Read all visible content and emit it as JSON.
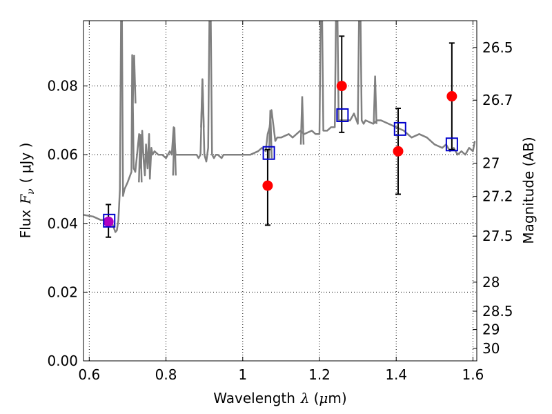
{
  "chart_data": {
    "type": "scatter",
    "title": "",
    "xlabel": "Wavelength",
    "xlabel_symbol": "λ",
    "xlabel_unit_open": "(",
    "xlabel_unit_mu": "μ",
    "xlabel_unit_rest": "m)",
    "ylabel": "Flux",
    "ylabel_symbol": "F",
    "ylabel_subscript": "ν",
    "ylabel_unit": "( μJy )",
    "y2label": "Magnitude (AB)",
    "xlim": [
      0.585,
      1.61
    ],
    "ylim": [
      0.0,
      0.099
    ],
    "xticks": [
      0.6,
      0.8,
      1.0,
      1.2,
      1.4,
      1.6
    ],
    "xtick_labels": [
      "0.6",
      "0.8",
      "1",
      "1.2",
      "1.4",
      "1.6"
    ],
    "yticks": [
      0.0,
      0.02,
      0.04,
      0.06,
      0.08
    ],
    "ytick_labels": [
      "0.00",
      "0.02",
      "0.04",
      "0.06",
      "0.08"
    ],
    "y2ticks": [
      26.5,
      26.7,
      27.0,
      27.2,
      27.5,
      28.0,
      28.5,
      29.0,
      30.0
    ],
    "y2tick_labels": [
      "26.5",
      "26.7",
      "27",
      "27.2",
      "27.5",
      "28",
      "28.5",
      "29",
      "30"
    ],
    "grid": true,
    "colors": {
      "model": "#808080",
      "observed": "#ff0000",
      "synthetic": "#0000cc",
      "errorbar": "#000000",
      "first_point": "#b000c0"
    },
    "model_spectrum": {
      "x": [
        0.585,
        0.61,
        0.63,
        0.645,
        0.66,
        0.668,
        0.672,
        0.676,
        0.68,
        0.684,
        0.688,
        0.692,
        0.7,
        0.71,
        0.712,
        0.716,
        0.72,
        0.73,
        0.735,
        0.738,
        0.742,
        0.745,
        0.748,
        0.752,
        0.756,
        0.758,
        0.762,
        0.765,
        0.77,
        0.78,
        0.79,
        0.8,
        0.81,
        0.815,
        0.82,
        0.825,
        0.83,
        0.84,
        0.86,
        0.87,
        0.88,
        0.885,
        0.89,
        0.895,
        0.9,
        0.905,
        0.91,
        0.915,
        0.92,
        0.925,
        0.93,
        0.935,
        0.945,
        0.95,
        0.96,
        0.97,
        1.0,
        1.02,
        1.04,
        1.05,
        1.06,
        1.065,
        1.07,
        1.075,
        1.085,
        1.09,
        1.1,
        1.12,
        1.13,
        1.15,
        1.16,
        1.18,
        1.19,
        1.2,
        1.205,
        1.21,
        1.22,
        1.23,
        1.24,
        1.245,
        1.25,
        1.26,
        1.275,
        1.28,
        1.29,
        1.3,
        1.305,
        1.31,
        1.315,
        1.32,
        1.34,
        1.35,
        1.36,
        1.38,
        1.4,
        1.42,
        1.44,
        1.46,
        1.48,
        1.5,
        1.52,
        1.53,
        1.54,
        1.55,
        1.56,
        1.57,
        1.58,
        1.59,
        1.6,
        1.605
      ],
      "y": [
        0.0425,
        0.042,
        0.041,
        0.041,
        0.04,
        0.0375,
        0.038,
        0.041,
        0.05,
        0.12,
        0.048,
        0.05,
        0.052,
        0.055,
        0.089,
        0.056,
        0.055,
        0.066,
        0.056,
        0.067,
        0.058,
        0.054,
        0.063,
        0.056,
        0.066,
        0.053,
        0.062,
        0.06,
        0.061,
        0.06,
        0.06,
        0.059,
        0.061,
        0.06,
        0.068,
        0.06,
        0.06,
        0.06,
        0.06,
        0.06,
        0.06,
        0.059,
        0.06,
        0.082,
        0.06,
        0.058,
        0.062,
        0.12,
        0.06,
        0.059,
        0.06,
        0.06,
        0.059,
        0.06,
        0.06,
        0.06,
        0.06,
        0.06,
        0.061,
        0.062,
        0.061,
        0.066,
        0.068,
        0.073,
        0.064,
        0.065,
        0.065,
        0.066,
        0.065,
        0.067,
        0.066,
        0.067,
        0.066,
        0.066,
        0.12,
        0.067,
        0.067,
        0.068,
        0.068,
        0.12,
        0.07,
        0.07,
        0.07,
        0.07,
        0.072,
        0.069,
        0.12,
        0.07,
        0.069,
        0.07,
        0.069,
        0.07,
        0.07,
        0.069,
        0.068,
        0.067,
        0.065,
        0.066,
        0.065,
        0.063,
        0.062,
        0.063,
        0.061,
        0.062,
        0.06,
        0.061,
        0.06,
        0.062,
        0.061,
        0.064
      ]
    },
    "emission_lines": {
      "x": [
        0.689,
        0.717,
        0.733,
        0.822,
        0.895,
        0.915,
        1.072,
        1.155,
        1.2,
        1.24,
        1.31,
        1.345
      ],
      "y": [
        0.12,
        0.089,
        0.066,
        0.068,
        0.082,
        0.12,
        0.073,
        0.077,
        0.12,
        0.12,
        0.12,
        0.083
      ]
    },
    "series": [
      {
        "marker": "circle",
        "x": [
          0.65,
          1.065,
          1.258,
          1.405,
          1.545
        ],
        "y": [
          0.0405,
          0.051,
          0.08,
          0.061,
          0.077
        ],
        "yerr_low": [
          0.036,
          0.0395,
          0.0665,
          0.0485,
          0.0615
        ],
        "yerr_high": [
          0.0455,
          0.0615,
          0.0945,
          0.0735,
          0.0925
        ]
      },
      {
        "marker": "open-square",
        "x": [
          0.652,
          1.068,
          1.26,
          1.41,
          1.545
        ],
        "y": [
          0.0408,
          0.0605,
          0.0715,
          0.0675,
          0.063
        ]
      }
    ]
  }
}
